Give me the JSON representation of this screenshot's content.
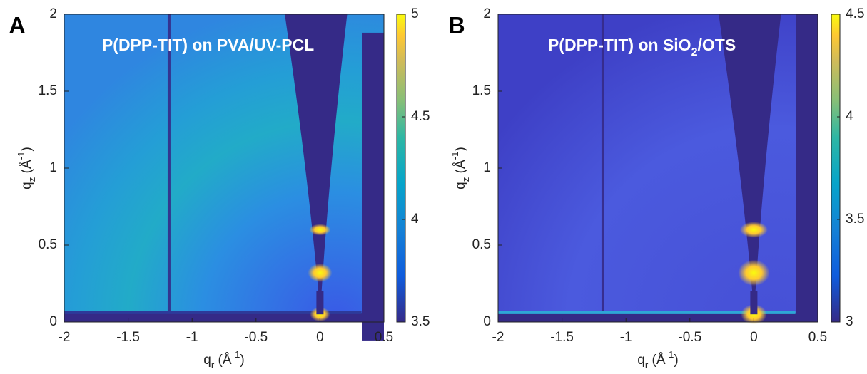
{
  "chart_data": [
    {
      "type": "heatmap",
      "panel_label": "A",
      "title": "P(DPP-TIT) on PVA/UV-PCL",
      "xlabel": [
        "q",
        "r",
        " (Å",
        "-1",
        ")"
      ],
      "ylabel": [
        "q",
        "z",
        " (Å",
        "-1",
        ")"
      ],
      "xlim": [
        -2,
        0.5
      ],
      "ylim": [
        0,
        2
      ],
      "xticks": [
        -2,
        -1.5,
        -1,
        -0.5,
        0,
        0.5
      ],
      "yticks": [
        0,
        0.5,
        1,
        1.5,
        2
      ],
      "clim": [
        3.5,
        5
      ],
      "cticks": [
        3.5,
        4,
        4.5,
        5
      ]
    },
    {
      "type": "heatmap",
      "panel_label": "B",
      "title": [
        "P(DPP-TIT) on SiO",
        "2",
        "/OTS"
      ],
      "xlabel": [
        "q",
        "r",
        " (Å",
        "-1",
        ")"
      ],
      "ylabel": [
        "q",
        "z",
        " (Å",
        "-1",
        ")"
      ],
      "xlim": [
        -2,
        0.5
      ],
      "ylim": [
        0,
        2
      ],
      "xticks": [
        -2,
        -1.5,
        -1,
        -0.5,
        0,
        0.5
      ],
      "yticks": [
        0,
        0.5,
        1,
        1.5,
        2
      ],
      "clim": [
        3,
        4.5
      ],
      "cticks": [
        3,
        3.5,
        4,
        4.5
      ]
    }
  ]
}
